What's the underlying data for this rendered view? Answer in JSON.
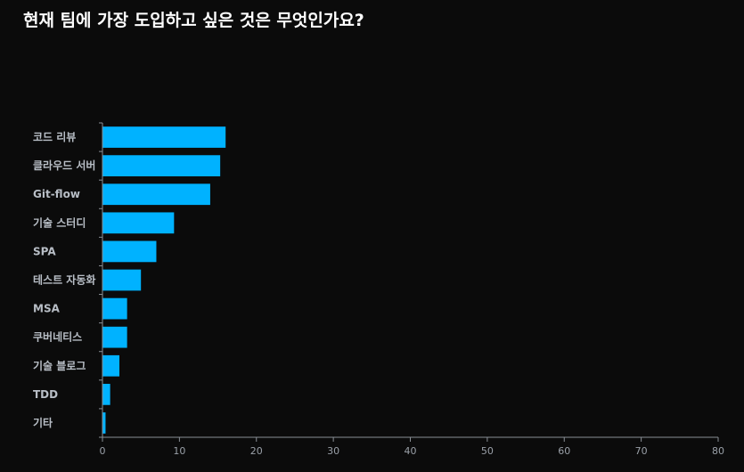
{
  "chart_data": {
    "type": "bar",
    "orientation": "horizontal",
    "title": "현재 팀에 가장 도입하고 싶은 것은 무엇인가요?",
    "categories": [
      "코드 리뷰",
      "클라우드 서버",
      "Git-flow",
      "기술 스터디",
      "SPA",
      "테스트 자동화",
      "MSA",
      "쿠버네티스",
      "기술 블로그",
      "TDD",
      "기타"
    ],
    "values": [
      16,
      15.3,
      14,
      9.3,
      7,
      5,
      3.2,
      3.2,
      2.2,
      1,
      0.4
    ],
    "xlim": [
      0,
      80
    ],
    "xticks": [
      0,
      10,
      20,
      30,
      40,
      50,
      60,
      70,
      80
    ],
    "bar_color": "#00b2ff",
    "grid": false,
    "legend": "none"
  }
}
